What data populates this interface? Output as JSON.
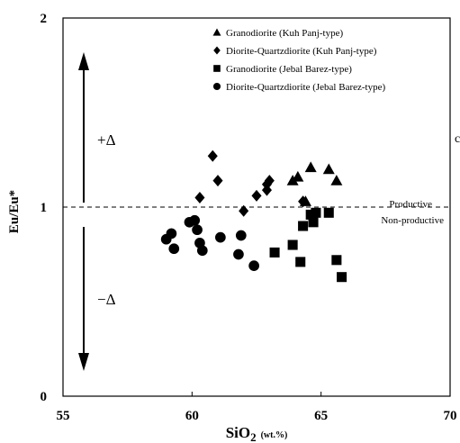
{
  "chart_data": {
    "type": "scatter",
    "xlabel": "SiO",
    "xlabel_sub": "2",
    "xlabel_unit": "(wt.%)",
    "ylabel": "Eu/Eu*",
    "xlim": [
      55,
      70
    ],
    "ylim": [
      0,
      2
    ],
    "xticks": [
      55,
      60,
      65,
      70
    ],
    "yticks": [
      0,
      1,
      2
    ],
    "xtick_labels": [
      "55",
      "60",
      "65",
      "70"
    ],
    "ytick_labels": [
      "0",
      "1",
      "2"
    ],
    "grid": false,
    "legend_position": "top-right",
    "reference_line": {
      "y": 1,
      "style": "dashed",
      "label_above": "Productive",
      "label_below": "Non-productive"
    },
    "annotations": {
      "plus": "+Δ",
      "minus": "−Δ",
      "edge_char": "c"
    },
    "series": [
      {
        "name": "Granodiorite (Kuh Panj-type)",
        "marker": "triangle",
        "points": [
          [
            63.9,
            1.14
          ],
          [
            64.1,
            1.16
          ],
          [
            64.4,
            1.03
          ],
          [
            64.6,
            1.21
          ],
          [
            65.3,
            1.2
          ],
          [
            65.6,
            1.14
          ]
        ]
      },
      {
        "name": "Diorite-Quartzdiorite (Kuh Panj-type)",
        "marker": "diamond",
        "points": [
          [
            60.3,
            1.05
          ],
          [
            60.8,
            1.27
          ],
          [
            61.0,
            1.14
          ],
          [
            62.0,
            0.98
          ],
          [
            62.5,
            1.06
          ],
          [
            62.9,
            1.09
          ],
          [
            62.9,
            1.12
          ],
          [
            63.0,
            1.14
          ],
          [
            64.3,
            1.03
          ]
        ]
      },
      {
        "name": "Granodiorite (Jebal Barez-type)",
        "marker": "square",
        "points": [
          [
            63.2,
            0.76
          ],
          [
            63.9,
            0.8
          ],
          [
            64.2,
            0.71
          ],
          [
            64.3,
            0.9
          ],
          [
            64.6,
            0.96
          ],
          [
            64.7,
            0.92
          ],
          [
            64.8,
            0.97
          ],
          [
            65.3,
            0.97
          ],
          [
            65.6,
            0.72
          ],
          [
            65.8,
            0.63
          ]
        ]
      },
      {
        "name": "Diorite-Quartzdiorite (Jebal Barez-type)",
        "marker": "circle",
        "points": [
          [
            59.0,
            0.83
          ],
          [
            59.2,
            0.86
          ],
          [
            59.3,
            0.78
          ],
          [
            59.9,
            0.92
          ],
          [
            60.1,
            0.93
          ],
          [
            60.2,
            0.88
          ],
          [
            60.3,
            0.81
          ],
          [
            60.4,
            0.77
          ],
          [
            61.1,
            0.84
          ],
          [
            61.8,
            0.75
          ],
          [
            61.9,
            0.85
          ],
          [
            62.4,
            0.69
          ]
        ]
      }
    ]
  }
}
